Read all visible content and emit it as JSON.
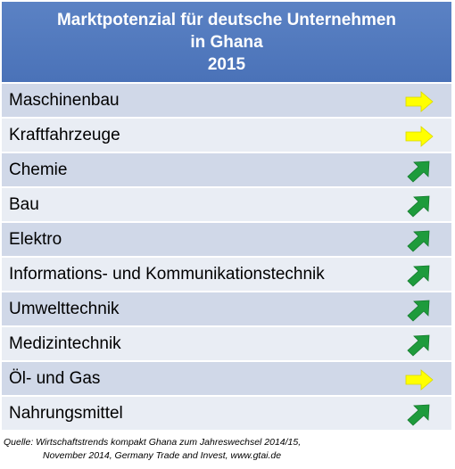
{
  "title": {
    "line1": "Marktpotenzial für deutsche Unternehmen",
    "line2": "in Ghana",
    "line3": "2015"
  },
  "rows": [
    {
      "label": "Maschinenbau",
      "trend": "right",
      "trend_icon": "yellow-right-arrow-icon"
    },
    {
      "label": "Kraftfahrzeuge",
      "trend": "right",
      "trend_icon": "yellow-right-arrow-icon"
    },
    {
      "label": "Chemie",
      "trend": "up",
      "trend_icon": "green-up-right-arrow-icon"
    },
    {
      "label": "Bau",
      "trend": "up",
      "trend_icon": "green-up-right-arrow-icon"
    },
    {
      "label": "Elektro",
      "trend": "up",
      "trend_icon": "green-up-right-arrow-icon"
    },
    {
      "label": "Informations- und Kommunikationstechnik",
      "trend": "up",
      "trend_icon": "green-up-right-arrow-icon"
    },
    {
      "label": "Umwelttechnik",
      "trend": "up",
      "trend_icon": "green-up-right-arrow-icon"
    },
    {
      "label": "Medizintechnik",
      "trend": "up",
      "trend_icon": "green-up-right-arrow-icon"
    },
    {
      "label": "Öl- und Gas",
      "trend": "right",
      "trend_icon": "yellow-right-arrow-icon"
    },
    {
      "label": "Nahrungsmittel",
      "trend": "up",
      "trend_icon": "green-up-right-arrow-icon"
    }
  ],
  "colors": {
    "header": "#4a72b8",
    "row_odd": "#d0d8e8",
    "row_even": "#e9edf4",
    "arrow_up": "#1e9b3c",
    "arrow_right": "#ffff00"
  },
  "source": {
    "line1": "Quelle: Wirtschaftstrends kompakt Ghana zum Jahreswechsel 2014/15,",
    "line2": "November 2014, Germany Trade and Invest, www.gtai.de"
  }
}
